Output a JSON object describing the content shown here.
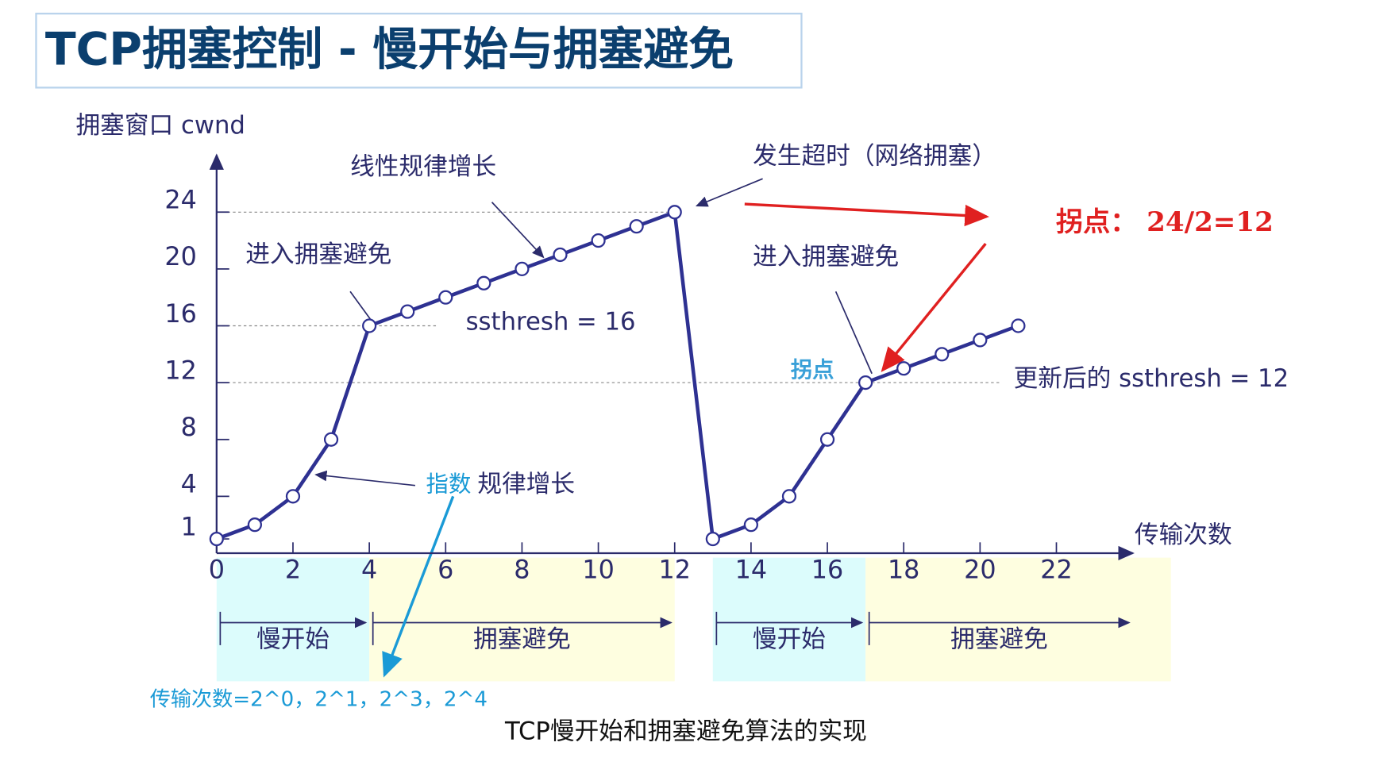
{
  "chart_data": {
    "type": "line",
    "title": "TCP拥塞控制 - 慢开始与拥塞避免",
    "y_label": "拥塞窗口 cwnd",
    "x_label": "传输次数",
    "x": [
      0,
      1,
      2,
      3,
      4,
      5,
      6,
      7,
      8,
      9,
      10,
      11,
      12,
      13,
      14,
      15,
      16,
      17,
      18,
      19,
      20,
      21
    ],
    "series": [
      {
        "color": "#2e3192",
        "values": [
          1,
          2,
          4,
          8,
          16,
          17,
          18,
          19,
          20,
          21,
          22,
          23,
          24,
          1,
          2,
          4,
          8,
          12,
          13,
          14,
          15,
          16
        ]
      }
    ],
    "xlim": [
      0,
      24
    ],
    "ylim": [
      0,
      28
    ],
    "xticks": [
      0,
      2,
      4,
      6,
      8,
      10,
      12,
      14,
      16,
      18,
      20,
      22
    ],
    "yticks": [
      1,
      4,
      8,
      12,
      16,
      20,
      24
    ],
    "ssthresh_lines": [
      24,
      16,
      12
    ],
    "phases": [
      {
        "label": "慢开始",
        "start": 0,
        "end": 4,
        "color": "#dcfcfc"
      },
      {
        "label": "拥塞避免",
        "start": 4,
        "end": 12,
        "color": "#fefee0"
      },
      {
        "label": "慢开始",
        "start": 13,
        "end": 17,
        "color": "#dcfcfc"
      },
      {
        "label": "拥塞避免",
        "start": 17,
        "end": 25,
        "color": "#fefee0"
      }
    ],
    "annotations": {
      "linear": "线性规律增长",
      "timeout": "发生超时（网络拥塞）",
      "enter_ca_1": "进入拥塞避免",
      "enter_ca_2": "进入拥塞避免",
      "ssthresh_16": "ssthresh = 16",
      "ssthresh_12": "更新后的 ssthresh = 12",
      "exp_1": "指数",
      "exp_2": "规律增长",
      "turn_small": "拐点",
      "turn_note": "拐点： 24/2=12",
      "footnote": "传输次数=2^0，2^1，2^3，2^4"
    },
    "caption": "TCP慢开始和拥塞避免算法的实现"
  }
}
